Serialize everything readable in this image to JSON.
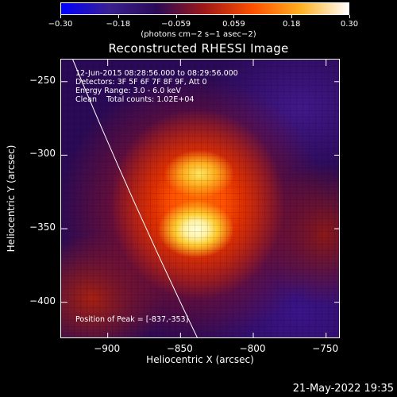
{
  "colorbar": {
    "ticks": [
      "−0.30",
      "−0.18",
      "−0.059",
      "0.059",
      "0.18",
      "0.30"
    ],
    "units": "(photons cm−2 s−1 asec−2)"
  },
  "title": "Reconstructed RHESSI Image",
  "info": {
    "line1": "12-Jun-2015 08:28:56.000 to 08:29:56.000",
    "line2": "Detectors: 3F 5F 6F 7F 8F 9F, Att 0",
    "line3": "Energy Range: 3.0 - 6.0 keV",
    "line4": "Clean    Total counts: 1.02E+04",
    "peak": "Position of Peak = [-837,-353]"
  },
  "timestamp": "21-May-2022 19:35",
  "chart_data": {
    "type": "heatmap",
    "title": "Reconstructed RHESSI Image",
    "xlabel": "Heliocentric X (arcsec)",
    "ylabel": "Heliocentric Y (arcsec)",
    "xlim": [
      -932,
      -740
    ],
    "ylim": [
      -425,
      -235
    ],
    "xticks": [
      {
        "value": -900,
        "label": "−900"
      },
      {
        "value": -850,
        "label": "−850"
      },
      {
        "value": -800,
        "label": "−800"
      },
      {
        "value": -750,
        "label": "−750"
      }
    ],
    "yticks": [
      {
        "value": -250,
        "label": "−250"
      },
      {
        "value": -300,
        "label": "−300"
      },
      {
        "value": -350,
        "label": "−350"
      },
      {
        "value": -400,
        "label": "−400"
      }
    ],
    "colorbar_range": [
      -0.3,
      0.3
    ],
    "peak": [
      -837,
      -353
    ],
    "limb_line": [
      [
        -924,
        -235
      ],
      [
        -838,
        -425
      ]
    ],
    "colors": [
      "#0000ff",
      "#3a2090",
      "#2a0a56",
      "#a01818",
      "#ff5000",
      "#ffb020",
      "#ffffff"
    ]
  }
}
